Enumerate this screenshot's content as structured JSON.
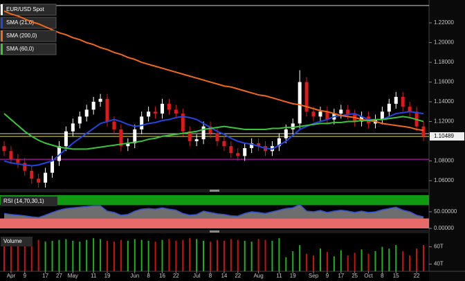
{
  "chart_data": [
    {
      "type": "candlestick",
      "up_color": "#ffffff",
      "down_color": "#e01a1a",
      "series": [
        {
          "name": "EUR/USD Spot",
          "color": "#ffffff",
          "open": [
            1.095,
            1.09,
            1.082,
            1.078,
            1.07,
            1.062,
            1.058,
            1.068,
            1.08,
            1.095,
            1.11,
            1.118,
            1.125,
            1.132,
            1.14,
            1.143,
            1.12,
            1.112,
            1.095,
            1.098,
            1.112,
            1.125,
            1.13,
            1.128,
            1.138,
            1.132,
            1.128,
            1.11,
            1.1,
            1.102,
            1.115,
            1.108,
            1.1,
            1.095,
            1.088,
            1.085,
            1.093,
            1.098,
            1.095,
            1.09,
            1.095,
            1.103,
            1.112,
            1.118,
            1.16,
            1.13,
            1.125,
            1.13,
            1.122,
            1.128,
            1.132,
            1.127,
            1.12,
            1.125,
            1.118,
            1.122,
            1.13,
            1.138,
            1.145,
            1.135,
            1.13,
            1.115
          ],
          "high": [
            1.1,
            1.095,
            1.087,
            1.083,
            1.075,
            1.067,
            1.073,
            1.085,
            1.1,
            1.115,
            1.123,
            1.13,
            1.137,
            1.145,
            1.148,
            1.148,
            1.125,
            1.117,
            1.103,
            1.117,
            1.13,
            1.135,
            1.135,
            1.143,
            1.143,
            1.137,
            1.133,
            1.115,
            1.107,
            1.12,
            1.12,
            1.113,
            1.105,
            1.1,
            1.093,
            1.098,
            1.103,
            1.103,
            1.1,
            1.1,
            1.108,
            1.117,
            1.123,
            1.172,
            1.165,
            1.135,
            1.135,
            1.135,
            1.133,
            1.137,
            1.137,
            1.132,
            1.13,
            1.13,
            1.127,
            1.135,
            1.143,
            1.15,
            1.15,
            1.14,
            1.135,
            1.12
          ],
          "low": [
            1.085,
            1.077,
            1.073,
            1.065,
            1.057,
            1.053,
            1.053,
            1.063,
            1.075,
            1.09,
            1.105,
            1.113,
            1.12,
            1.127,
            1.135,
            1.115,
            1.107,
            1.09,
            1.09,
            1.093,
            1.107,
            1.12,
            1.123,
            1.123,
            1.127,
            1.123,
            1.105,
            1.095,
            1.095,
            1.097,
            1.103,
            1.095,
            1.09,
            1.083,
            1.08,
            1.08,
            1.088,
            1.09,
            1.085,
            1.085,
            1.09,
            1.098,
            1.107,
            1.113,
            1.125,
            1.12,
            1.12,
            1.117,
            1.117,
            1.123,
            1.122,
            1.115,
            1.115,
            1.113,
            1.113,
            1.117,
            1.125,
            1.133,
            1.13,
            1.125,
            1.11,
            1.1
          ],
          "close": [
            1.09,
            1.082,
            1.078,
            1.07,
            1.062,
            1.058,
            1.068,
            1.08,
            1.095,
            1.11,
            1.118,
            1.125,
            1.132,
            1.14,
            1.143,
            1.12,
            1.112,
            1.095,
            1.098,
            1.112,
            1.125,
            1.13,
            1.128,
            1.138,
            1.132,
            1.128,
            1.11,
            1.1,
            1.102,
            1.115,
            1.108,
            1.1,
            1.095,
            1.088,
            1.085,
            1.093,
            1.098,
            1.095,
            1.09,
            1.095,
            1.103,
            1.112,
            1.118,
            1.16,
            1.13,
            1.125,
            1.13,
            1.122,
            1.128,
            1.132,
            1.127,
            1.12,
            1.125,
            1.118,
            1.122,
            1.13,
            1.138,
            1.145,
            1.135,
            1.13,
            1.115,
            1.105
          ]
        },
        {
          "name": "SMA (21,0)",
          "color": "#2246e0",
          "values": [
            1.08,
            1.078,
            1.077,
            1.076,
            1.075,
            1.076,
            1.078,
            1.08,
            1.086,
            1.092,
            1.098,
            1.103,
            1.108,
            1.113,
            1.118,
            1.12,
            1.122,
            1.12,
            1.117,
            1.115,
            1.116,
            1.118,
            1.119,
            1.121,
            1.122,
            1.124,
            1.125,
            1.124,
            1.122,
            1.118,
            1.114,
            1.11,
            1.107,
            1.103,
            1.1,
            1.098,
            1.097,
            1.095,
            1.093,
            1.092,
            1.096,
            1.1,
            1.106,
            1.112,
            1.115,
            1.118,
            1.12,
            1.122,
            1.125,
            1.126,
            1.127,
            1.128,
            1.125,
            1.122,
            1.122,
            1.122,
            1.125,
            1.128,
            1.129,
            1.13,
            1.129,
            1.128
          ]
        },
        {
          "name": "SMA (200,0)",
          "color": "#f06a1a",
          "values": [
            1.232,
            1.229,
            1.227,
            1.224,
            1.221,
            1.219,
            1.216,
            1.213,
            1.21,
            1.208,
            1.205,
            1.203,
            1.2,
            1.198,
            1.195,
            1.193,
            1.19,
            1.188,
            1.185,
            1.183,
            1.18,
            1.178,
            1.176,
            1.174,
            1.172,
            1.17,
            1.168,
            1.166,
            1.164,
            1.162,
            1.16,
            1.158,
            1.156,
            1.155,
            1.153,
            1.151,
            1.149,
            1.147,
            1.146,
            1.144,
            1.142,
            1.14,
            1.138,
            1.137,
            1.135,
            1.133,
            1.131,
            1.13,
            1.128,
            1.126,
            1.125,
            1.124,
            1.122,
            1.121,
            1.12,
            1.118,
            1.117,
            1.116,
            1.115,
            1.114,
            1.112,
            1.111
          ]
        },
        {
          "name": "SMA (60,0)",
          "color": "#3cc43c",
          "values": [
            1.128,
            1.122,
            1.116,
            1.11,
            1.105,
            1.101,
            1.098,
            1.096,
            1.094,
            1.093,
            1.092,
            1.092,
            1.092,
            1.093,
            1.094,
            1.095,
            1.096,
            1.097,
            1.098,
            1.099,
            1.1,
            1.102,
            1.103,
            1.105,
            1.106,
            1.107,
            1.108,
            1.109,
            1.11,
            1.112,
            1.113,
            1.114,
            1.115,
            1.114,
            1.113,
            1.112,
            1.112,
            1.112,
            1.112,
            1.113,
            1.113,
            1.114,
            1.114,
            1.115,
            1.116,
            1.117,
            1.118,
            1.118,
            1.119,
            1.119,
            1.12,
            1.12,
            1.121,
            1.121,
            1.122,
            1.122,
            1.123,
            1.124,
            1.125,
            1.124,
            1.122,
            1.12
          ]
        }
      ],
      "ylim": [
        1.0523,
        1.2432
      ],
      "yticks": [
        {
          "value": 1.22,
          "label": "1.22000"
        },
        {
          "value": 1.2,
          "label": "1.20000"
        },
        {
          "value": 1.18,
          "label": "1.18000"
        },
        {
          "value": 1.16,
          "label": "1.16000"
        },
        {
          "value": 1.14,
          "label": "1.14000"
        },
        {
          "value": 1.12,
          "label": "1.12000"
        },
        {
          "value": 1.08,
          "label": "1.08000"
        },
        {
          "value": 1.06,
          "label": "1.06000"
        }
      ],
      "levels": [
        {
          "value": 1.2376,
          "color": "#d8d8d8"
        },
        {
          "value": 1.1077,
          "color": "#d8d8d8"
        },
        {
          "value": 1.0817,
          "color": "#d020d0"
        }
      ],
      "last_price": {
        "value": 1.10489,
        "label": "1.10489",
        "color": "#e8e020"
      }
    },
    {
      "type": "line",
      "title": "RSI (14,70,30,1)",
      "color": "#d0d0d0",
      "values": [
        45,
        42,
        40,
        38,
        35,
        33,
        40,
        48,
        55,
        60,
        62,
        64,
        66,
        68,
        68,
        52,
        48,
        40,
        42,
        52,
        58,
        60,
        58,
        62,
        58,
        55,
        45,
        40,
        42,
        52,
        48,
        44,
        42,
        38,
        37,
        45,
        50,
        48,
        45,
        50,
        55,
        60,
        62,
        72,
        52,
        50,
        54,
        48,
        52,
        55,
        52,
        48,
        52,
        48,
        50,
        56,
        60,
        64,
        55,
        50,
        40,
        35
      ],
      "ylim": [
        0,
        100
      ],
      "yticks": [
        {
          "value": 50,
          "label": "50.00000"
        },
        {
          "value": 0,
          "label": "0.00000"
        }
      ],
      "overbought": 70,
      "oversold": 30,
      "overbought_color": "#0f9a12",
      "oversold_color": "#e86a6a"
    },
    {
      "type": "bar",
      "title": "Volume",
      "up_color": "#1fb31f",
      "down_color": "#d01010",
      "categories": [
        null,
        "Apr",
        null,
        "9",
        null,
        null,
        "17",
        null,
        "27",
        null,
        "May",
        null,
        null,
        "11",
        null,
        "19",
        null,
        null,
        null,
        "Jun",
        null,
        "8",
        null,
        "16",
        null,
        "22",
        null,
        null,
        "Jul",
        null,
        "8",
        null,
        "14",
        null,
        "22",
        null,
        null,
        "Aug",
        null,
        null,
        "11",
        null,
        "19",
        null,
        null,
        "Sep",
        null,
        "9",
        null,
        "17",
        null,
        "25",
        null,
        "Oct",
        null,
        "8",
        null,
        "15",
        null,
        null,
        "22",
        null
      ],
      "values": [
        66,
        68,
        67,
        69,
        70,
        68,
        66,
        67,
        68,
        69,
        67,
        66,
        68,
        70,
        69,
        67,
        66,
        68,
        67,
        69,
        68,
        67,
        66,
        68,
        69,
        67,
        68,
        70,
        69,
        67,
        66,
        68,
        67,
        69,
        68,
        67,
        66,
        69,
        68,
        67,
        70,
        48,
        55,
        62,
        52,
        50,
        58,
        54,
        49,
        56,
        50,
        53,
        57,
        52,
        55,
        60,
        58,
        62,
        55,
        50,
        58,
        62
      ],
      "ylim": [
        31.7,
        73.3
      ],
      "yticks": [
        {
          "value": 60,
          "label": "60T"
        },
        {
          "value": 40,
          "label": "40T"
        }
      ]
    }
  ]
}
